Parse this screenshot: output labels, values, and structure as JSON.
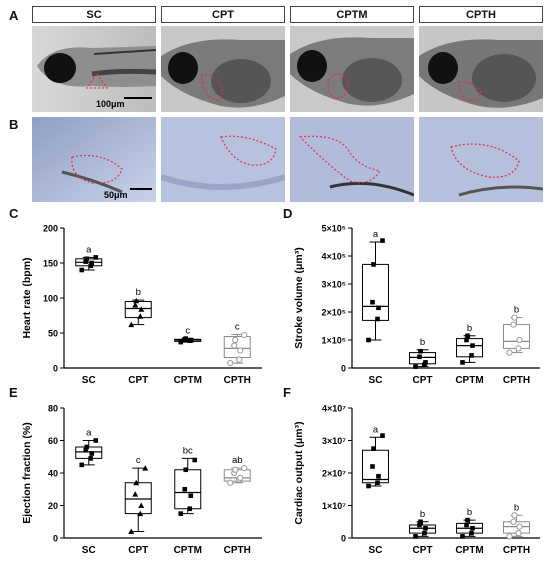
{
  "panels": {
    "A": "A",
    "B": "B",
    "C": "C",
    "D": "D",
    "E": "E",
    "F": "F"
  },
  "groups": [
    "SC",
    "CPT",
    "CPTM",
    "CPTH"
  ],
  "scalebars": {
    "A": "100μm",
    "B": "50μm"
  },
  "chart_data": [
    {
      "panel": "C",
      "type": "box",
      "ylabel": "Heart rate (bpm)",
      "ylim": [
        0,
        200
      ],
      "yticks": [
        0,
        50,
        100,
        150,
        200
      ],
      "tick_labels": [
        "0",
        "50",
        "100",
        "150",
        "200"
      ],
      "categories": [
        "SC",
        "CPT",
        "CPTM",
        "CPTH"
      ],
      "boxes": [
        {
          "q1": 146,
          "median": 151,
          "q3": 156,
          "min": 140,
          "max": 158,
          "points": [
            140,
            146,
            150,
            152,
            156,
            158
          ],
          "letter": "a",
          "filled": true
        },
        {
          "q1": 72,
          "median": 85,
          "q3": 95,
          "min": 62,
          "max": 97,
          "points": [
            62,
            74,
            84,
            90,
            96
          ],
          "letter": "b",
          "filled": true
        },
        {
          "q1": 38,
          "median": 40,
          "q3": 41,
          "min": 37,
          "max": 42,
          "points": [
            37,
            39,
            40,
            41,
            42
          ],
          "letter": "c",
          "filled": true
        },
        {
          "q1": 15,
          "median": 28,
          "q3": 45,
          "min": 7,
          "max": 48,
          "points": [
            7,
            12,
            25,
            32,
            40,
            47
          ],
          "letter": "c",
          "filled": false
        }
      ]
    },
    {
      "panel": "D",
      "type": "box",
      "ylabel": "Stroke volume (μm³)",
      "ylim": [
        0,
        500000
      ],
      "yticks": [
        0,
        100000,
        200000,
        300000,
        400000,
        500000
      ],
      "tick_labels": [
        "0",
        "1×10⁵",
        "2×10⁵",
        "3×10⁵",
        "4×10⁵",
        "5×10⁵"
      ],
      "categories": [
        "SC",
        "CPT",
        "CPTM",
        "CPTH"
      ],
      "boxes": [
        {
          "q1": 170000,
          "median": 220000,
          "q3": 370000,
          "min": 100000,
          "max": 450000,
          "points": [
            100000,
            175000,
            215000,
            235000,
            370000,
            455000
          ],
          "letter": "a",
          "filled": true
        },
        {
          "q1": 15000,
          "median": 38000,
          "q3": 55000,
          "min": 5000,
          "max": 65000,
          "points": [
            5000,
            12000,
            20000,
            40000,
            60000
          ],
          "letter": "b",
          "filled": true
        },
        {
          "q1": 40000,
          "median": 80000,
          "q3": 105000,
          "min": 20000,
          "max": 115000,
          "points": [
            20000,
            45000,
            80000,
            100000,
            115000
          ],
          "letter": "b",
          "filled": true
        },
        {
          "q1": 70000,
          "median": 95000,
          "q3": 155000,
          "min": 55000,
          "max": 180000,
          "points": [
            55000,
            70000,
            100000,
            155000,
            180000
          ],
          "letter": "b",
          "filled": false
        }
      ]
    },
    {
      "panel": "E",
      "type": "box",
      "ylabel": "Ejection fraction (%)",
      "ylim": [
        0,
        80
      ],
      "yticks": [
        0,
        20,
        40,
        60,
        80
      ],
      "tick_labels": [
        "0",
        "20",
        "40",
        "60",
        "80"
      ],
      "categories": [
        "SC",
        "CPT",
        "CPTM",
        "CPTH"
      ],
      "boxes": [
        {
          "q1": 49,
          "median": 53,
          "q3": 56,
          "min": 45,
          "max": 60,
          "points": [
            45,
            49,
            52,
            54,
            56,
            60
          ],
          "letter": "a",
          "filled": true
        },
        {
          "q1": 15,
          "median": 24,
          "q3": 34,
          "min": 4,
          "max": 43,
          "points": [
            4,
            15,
            20,
            27,
            34,
            43
          ],
          "letter": "c",
          "filled": true
        },
        {
          "q1": 18,
          "median": 28,
          "q3": 42,
          "min": 15,
          "max": 49,
          "points": [
            15,
            18,
            26,
            30,
            42,
            48
          ],
          "letter": "bc",
          "filled": true
        },
        {
          "q1": 35,
          "median": 37,
          "q3": 42,
          "min": 34,
          "max": 43,
          "points": [
            34,
            36,
            37,
            40,
            42,
            43
          ],
          "letter": "ab",
          "filled": false
        }
      ]
    },
    {
      "panel": "F",
      "type": "box",
      "ylabel": "Cardiac output (μm³)",
      "ylim": [
        0,
        40000000
      ],
      "yticks": [
        0,
        10000000,
        20000000,
        30000000,
        40000000
      ],
      "tick_labels": [
        "0",
        "1×10⁷",
        "2×10⁷",
        "3×10⁷",
        "4×10⁷"
      ],
      "categories": [
        "SC",
        "CPT",
        "CPTM",
        "CPTH"
      ],
      "boxes": [
        {
          "q1": 17000000,
          "median": 18000000,
          "q3": 27000000,
          "min": 16000000,
          "max": 31000000,
          "points": [
            16000000,
            17000000,
            19000000,
            22000000,
            27500000,
            31500000
          ],
          "letter": "a",
          "filled": true
        },
        {
          "q1": 1500000,
          "median": 3000000,
          "q3": 4000000,
          "min": 500000,
          "max": 5000000,
          "points": [
            500000,
            1500000,
            3000000,
            4000000,
            5000000
          ],
          "letter": "b",
          "filled": true
        },
        {
          "q1": 1500000,
          "median": 3000000,
          "q3": 4500000,
          "min": 500000,
          "max": 5500000,
          "points": [
            500000,
            1500000,
            3000000,
            4000000,
            5500000
          ],
          "letter": "b",
          "filled": true
        },
        {
          "q1": 1500000,
          "median": 3500000,
          "q3": 5000000,
          "min": 500000,
          "max": 7000000,
          "points": [
            500000,
            1500000,
            3500000,
            5000000,
            7000000
          ],
          "letter": "b",
          "filled": false
        }
      ]
    }
  ],
  "colors": {
    "outline": "#e0304a",
    "photoA_bg": "#cfcfcf",
    "photoB_bg": "#aebbd8",
    "open_marker": "#9a9a9a"
  }
}
